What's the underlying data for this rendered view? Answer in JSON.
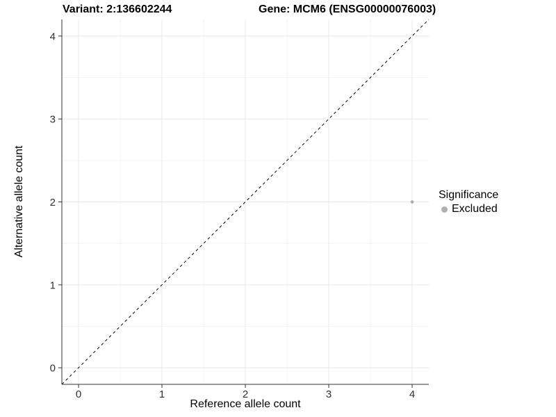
{
  "header": {
    "variant_title": "Variant: 2:136602244",
    "gene_title": "Gene: MCM6 (ENSG00000076003)"
  },
  "chart_data": {
    "type": "scatter",
    "title": "Variant: 2:136602244   Gene: MCM6 (ENSG00000076003)",
    "xlabel": "Reference allele count",
    "ylabel": "Alternative allele count",
    "xlim": [
      -0.2,
      4.2
    ],
    "ylim": [
      -0.2,
      4.2
    ],
    "x_ticks": [
      0,
      1,
      2,
      3,
      4
    ],
    "y_ticks": [
      0,
      1,
      2,
      3,
      4
    ],
    "minor_grid_step": 0.5,
    "grid": "major+minor",
    "series": [
      {
        "name": "Excluded",
        "color": "#aaaaaa",
        "point_radius": 2.3,
        "points": [
          {
            "x": 4,
            "y": 2
          }
        ]
      }
    ],
    "reference_line": {
      "kind": "identity-diagonal",
      "from": [
        -0.2,
        -0.2
      ],
      "to": [
        4.2,
        4.2
      ],
      "style": "dashed",
      "color": "#000000"
    },
    "legend": {
      "position": "right",
      "title": "Significance",
      "entries": [
        {
          "label": "Excluded",
          "color": "#b0b0b0"
        }
      ]
    }
  },
  "style_colors": {
    "background": "#ffffff",
    "major_grid": "#e8e8e8",
    "minor_grid": "#f3f3f3",
    "axis_line": "#333333",
    "tick_label": "#303030"
  }
}
